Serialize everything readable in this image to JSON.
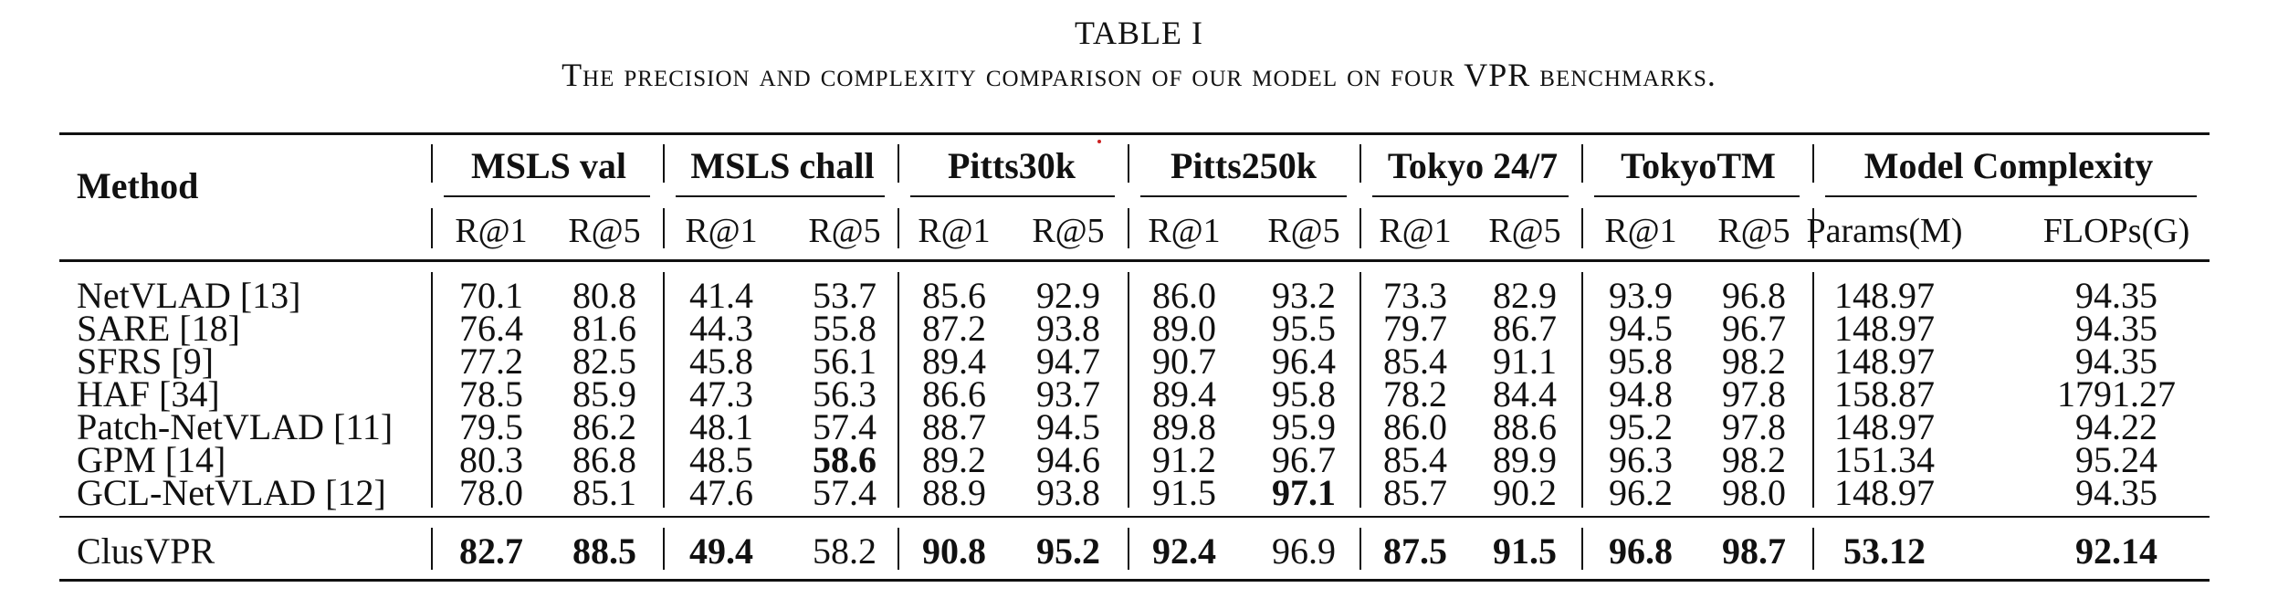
{
  "caption": {
    "label": "TABLE I",
    "text": "The precision and complexity comparison of our model on four VPR benchmarks."
  },
  "table": {
    "method_header": "Method",
    "groups": [
      "MSLS val",
      "MSLS chall",
      "Pitts30k",
      "Pitts250k",
      "Tokyo 24/7",
      "TokyoTM",
      "Model Complexity"
    ],
    "subheaders": [
      "R@1",
      "R@5",
      "R@1",
      "R@5",
      "R@1",
      "R@5",
      "R@1",
      "R@5",
      "R@1",
      "R@5",
      "R@1",
      "R@5",
      "Params(M)",
      "FLOPs(G)"
    ],
    "rows": [
      {
        "method": "NetVLAD [13]",
        "values": [
          "70.1",
          "80.8",
          "41.4",
          "53.7",
          "85.6",
          "92.9",
          "86.0",
          "93.2",
          "73.3",
          "82.9",
          "93.9",
          "96.8",
          "148.97",
          "94.35"
        ]
      },
      {
        "method": "SARE [18]",
        "values": [
          "76.4",
          "81.6",
          "44.3",
          "55.8",
          "87.2",
          "93.8",
          "89.0",
          "95.5",
          "79.7",
          "86.7",
          "94.5",
          "96.7",
          "148.97",
          "94.35"
        ]
      },
      {
        "method": "SFRS [9]",
        "values": [
          "77.2",
          "82.5",
          "45.8",
          "56.1",
          "89.4",
          "94.7",
          "90.7",
          "96.4",
          "85.4",
          "91.1",
          "95.8",
          "98.2",
          "148.97",
          "94.35"
        ]
      },
      {
        "method": "HAF [34]",
        "values": [
          "78.5",
          "85.9",
          "47.3",
          "56.3",
          "86.6",
          "93.7",
          "89.4",
          "95.8",
          "78.2",
          "84.4",
          "94.8",
          "97.8",
          "158.87",
          "1791.27"
        ]
      },
      {
        "method": "Patch-NetVLAD [11]",
        "values": [
          "79.5",
          "86.2",
          "48.1",
          "57.4",
          "88.7",
          "94.5",
          "89.8",
          "95.9",
          "86.0",
          "88.6",
          "95.2",
          "97.8",
          "148.97",
          "94.22"
        ]
      },
      {
        "method": "GPM [14]",
        "values": [
          "80.3",
          "86.8",
          "48.5",
          "58.6",
          "89.2",
          "94.6",
          "91.2",
          "96.7",
          "85.4",
          "89.9",
          "96.3",
          "98.2",
          "151.34",
          "95.24"
        ]
      },
      {
        "method": "GCL-NetVLAD [12]",
        "values": [
          "78.0",
          "85.1",
          "47.6",
          "57.4",
          "88.9",
          "93.8",
          "91.5",
          "97.1",
          "85.7",
          "90.2",
          "96.2",
          "98.0",
          "148.97",
          "94.35"
        ]
      }
    ],
    "final_row": {
      "method": "ClusVPR",
      "values": [
        "82.7",
        "88.5",
        "49.4",
        "58.2",
        "90.8",
        "95.2",
        "92.4",
        "96.9",
        "87.5",
        "91.5",
        "96.8",
        "98.7",
        "53.12",
        "92.14"
      ]
    },
    "bold_cells": [
      {
        "row": 5,
        "col": 3
      },
      {
        "row": 6,
        "col": 7
      }
    ],
    "final_row_bold_cols": [
      0,
      1,
      2,
      4,
      5,
      6,
      8,
      9,
      10,
      11,
      12,
      13
    ]
  }
}
